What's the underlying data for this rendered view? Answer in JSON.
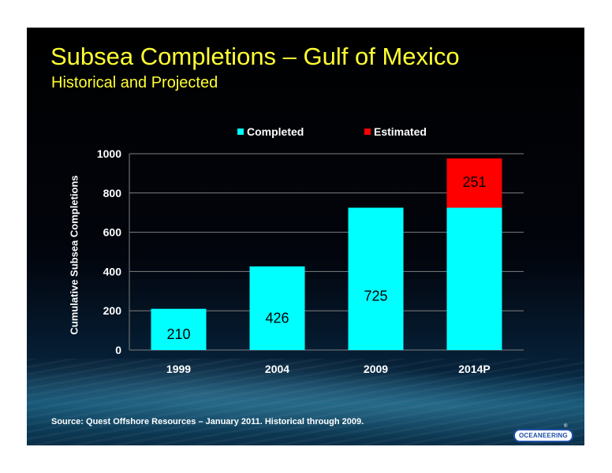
{
  "slide": {
    "title": "Subsea Completions – Gulf of Mexico",
    "subtitle": "Historical and Projected",
    "source": "Source:  Quest Offshore Resources – January 2011.  Historical through 2009.",
    "logo_text": "OCEANEERING",
    "logo_mark": "®"
  },
  "colors": {
    "title": "#ffff33",
    "completed": "#00ffff",
    "estimated": "#ff0000",
    "gridline": "#808080",
    "background": "#000000"
  },
  "chart_data": {
    "type": "bar",
    "stacked": true,
    "categories": [
      "1999",
      "2004",
      "2009",
      "2014P"
    ],
    "series": [
      {
        "name": "Completed",
        "values": [
          210,
          426,
          725,
          725
        ],
        "labels": [
          "210",
          "426",
          "725",
          ""
        ]
      },
      {
        "name": "Estimated",
        "values": [
          0,
          0,
          0,
          251
        ],
        "labels": [
          "",
          "",
          "",
          "251"
        ]
      }
    ],
    "xlabel": "",
    "ylabel": "Cumulative Subsea Completions",
    "ylim": [
      0,
      1000
    ],
    "yticks": [
      0,
      200,
      400,
      600,
      800,
      1000
    ],
    "grid": true,
    "legend_position": "top"
  }
}
